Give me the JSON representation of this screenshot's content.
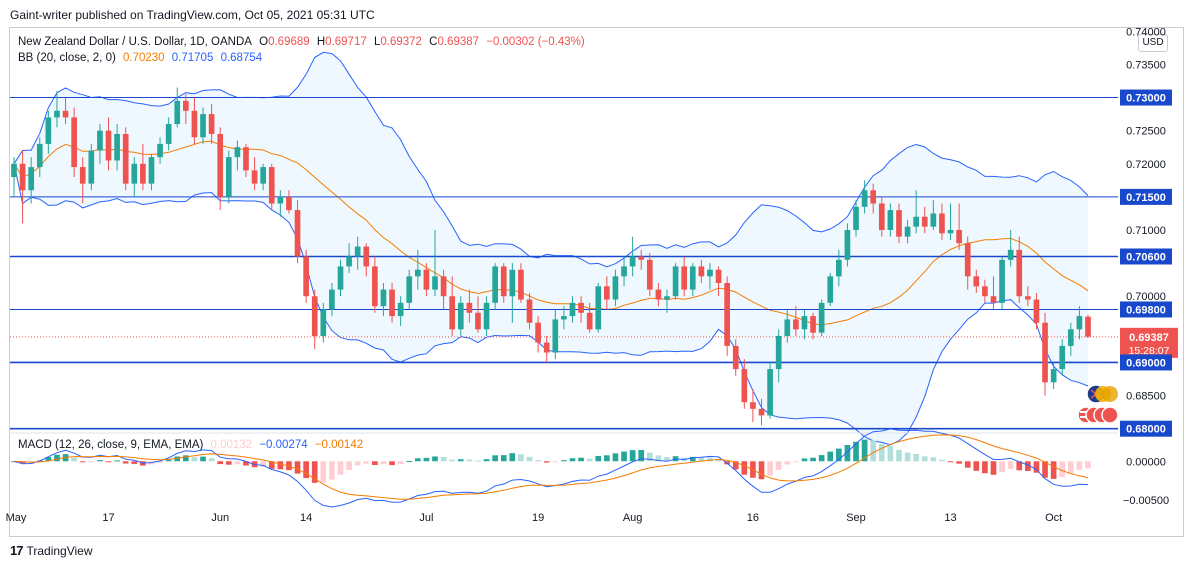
{
  "publisher_line": "Gaint-writer published on TradingView.com, Oct 05, 2021 05:31 UTC",
  "legend": {
    "symbol": "New Zealand Dollar / U.S. Dollar, 1D, OANDA",
    "open_label": "O",
    "open": "0.69689",
    "high_label": "H",
    "high": "0.69717",
    "low_label": "L",
    "low": "0.69372",
    "close_label": "C",
    "close": "0.69387",
    "change": "−0.00302 (−0.43%)",
    "bb_label": "BB (20, close, 2, 0)",
    "bb_mid": "0.70230",
    "bb_upper": "0.71705",
    "bb_lower": "0.68754",
    "macd_label": "MACD (12, 26, close, 9, EMA, EMA)",
    "macd_hist": "0.00132",
    "macd_line": "−0.00274",
    "macd_signal": "−0.00142"
  },
  "currency_button": "USD",
  "brand": "TradingView",
  "colors": {
    "up": "#26a69a",
    "down": "#ef5350",
    "bb_mid": "#f57c00",
    "bb_band": "#2962ff",
    "level_line": "#1848cc",
    "macd": "#2962ff",
    "signal": "#f57c00"
  },
  "chart_data": {
    "type": "candlestick",
    "symbol": "NZDUSD",
    "timeframe": "1D",
    "ylim": [
      0.6795,
      0.7405
    ],
    "price_ticks": [
      "0.74000",
      "0.73500",
      "0.73000",
      "0.72500",
      "0.72000",
      "0.71500",
      "0.71000",
      "0.70600",
      "0.70000",
      "0.69800",
      "0.69387",
      "0.69000",
      "0.68500",
      "0.68000"
    ],
    "current_price": "0.69387",
    "countdown": "15:28:07",
    "horizontal_levels": [
      {
        "value": 0.73,
        "label": "0.73000"
      },
      {
        "value": 0.715,
        "label": "0.71500"
      },
      {
        "value": 0.706,
        "label": "0.70600"
      },
      {
        "value": 0.698,
        "label": "0.69800"
      },
      {
        "value": 0.69,
        "label": "0.69000"
      },
      {
        "value": 0.68,
        "label": "0.68000"
      }
    ],
    "x_labels": [
      "May",
      "17",
      "Jun",
      "14",
      "Jul",
      "19",
      "Aug",
      "16",
      "Sep",
      "13",
      "Oct"
    ],
    "macd_ylim": [
      -0.006,
      0.0035
    ],
    "macd_ticks": [
      "0.00000",
      "−0.00500"
    ],
    "candles": [
      {
        "o": 0.718,
        "h": 0.721,
        "l": 0.715,
        "c": 0.72
      },
      {
        "o": 0.72,
        "h": 0.722,
        "l": 0.711,
        "c": 0.716
      },
      {
        "o": 0.716,
        "h": 0.721,
        "l": 0.714,
        "c": 0.7195
      },
      {
        "o": 0.7195,
        "h": 0.724,
        "l": 0.718,
        "c": 0.723
      },
      {
        "o": 0.723,
        "h": 0.728,
        "l": 0.7215,
        "c": 0.727
      },
      {
        "o": 0.727,
        "h": 0.731,
        "l": 0.7255,
        "c": 0.728
      },
      {
        "o": 0.728,
        "h": 0.73,
        "l": 0.726,
        "c": 0.727
      },
      {
        "o": 0.727,
        "h": 0.7285,
        "l": 0.718,
        "c": 0.7195
      },
      {
        "o": 0.7195,
        "h": 0.721,
        "l": 0.714,
        "c": 0.717
      },
      {
        "o": 0.717,
        "h": 0.723,
        "l": 0.716,
        "c": 0.722
      },
      {
        "o": 0.722,
        "h": 0.726,
        "l": 0.72,
        "c": 0.725
      },
      {
        "o": 0.725,
        "h": 0.727,
        "l": 0.719,
        "c": 0.7205
      },
      {
        "o": 0.7205,
        "h": 0.726,
        "l": 0.719,
        "c": 0.7245
      },
      {
        "o": 0.7245,
        "h": 0.7255,
        "l": 0.716,
        "c": 0.717
      },
      {
        "o": 0.717,
        "h": 0.721,
        "l": 0.715,
        "c": 0.72
      },
      {
        "o": 0.72,
        "h": 0.723,
        "l": 0.716,
        "c": 0.717
      },
      {
        "o": 0.717,
        "h": 0.7215,
        "l": 0.716,
        "c": 0.721
      },
      {
        "o": 0.721,
        "h": 0.724,
        "l": 0.72,
        "c": 0.723
      },
      {
        "o": 0.723,
        "h": 0.727,
        "l": 0.722,
        "c": 0.726
      },
      {
        "o": 0.726,
        "h": 0.7315,
        "l": 0.7255,
        "c": 0.7295
      },
      {
        "o": 0.7295,
        "h": 0.7305,
        "l": 0.726,
        "c": 0.728
      },
      {
        "o": 0.728,
        "h": 0.73,
        "l": 0.723,
        "c": 0.724
      },
      {
        "o": 0.724,
        "h": 0.7285,
        "l": 0.723,
        "c": 0.7275
      },
      {
        "o": 0.7275,
        "h": 0.729,
        "l": 0.723,
        "c": 0.7245
      },
      {
        "o": 0.7245,
        "h": 0.7255,
        "l": 0.713,
        "c": 0.715
      },
      {
        "o": 0.715,
        "h": 0.722,
        "l": 0.714,
        "c": 0.721
      },
      {
        "o": 0.721,
        "h": 0.7235,
        "l": 0.719,
        "c": 0.7225
      },
      {
        "o": 0.7225,
        "h": 0.723,
        "l": 0.718,
        "c": 0.719
      },
      {
        "o": 0.719,
        "h": 0.721,
        "l": 0.716,
        "c": 0.717
      },
      {
        "o": 0.717,
        "h": 0.72,
        "l": 0.716,
        "c": 0.7195
      },
      {
        "o": 0.7195,
        "h": 0.72,
        "l": 0.713,
        "c": 0.714
      },
      {
        "o": 0.714,
        "h": 0.716,
        "l": 0.712,
        "c": 0.715
      },
      {
        "o": 0.715,
        "h": 0.716,
        "l": 0.7125,
        "c": 0.713
      },
      {
        "o": 0.713,
        "h": 0.7145,
        "l": 0.705,
        "c": 0.706
      },
      {
        "o": 0.706,
        "h": 0.707,
        "l": 0.699,
        "c": 0.7
      },
      {
        "o": 0.7,
        "h": 0.701,
        "l": 0.692,
        "c": 0.694
      },
      {
        "o": 0.694,
        "h": 0.699,
        "l": 0.693,
        "c": 0.698
      },
      {
        "o": 0.698,
        "h": 0.702,
        "l": 0.697,
        "c": 0.701
      },
      {
        "o": 0.701,
        "h": 0.7055,
        "l": 0.7,
        "c": 0.7045
      },
      {
        "o": 0.7045,
        "h": 0.708,
        "l": 0.7035,
        "c": 0.706
      },
      {
        "o": 0.706,
        "h": 0.709,
        "l": 0.704,
        "c": 0.7075
      },
      {
        "o": 0.7075,
        "h": 0.708,
        "l": 0.703,
        "c": 0.7045
      },
      {
        "o": 0.7045,
        "h": 0.706,
        "l": 0.6975,
        "c": 0.6985
      },
      {
        "o": 0.6985,
        "h": 0.702,
        "l": 0.697,
        "c": 0.701
      },
      {
        "o": 0.701,
        "h": 0.702,
        "l": 0.696,
        "c": 0.697
      },
      {
        "o": 0.697,
        "h": 0.7,
        "l": 0.6955,
        "c": 0.699
      },
      {
        "o": 0.699,
        "h": 0.704,
        "l": 0.698,
        "c": 0.703
      },
      {
        "o": 0.703,
        "h": 0.707,
        "l": 0.701,
        "c": 0.704
      },
      {
        "o": 0.704,
        "h": 0.705,
        "l": 0.7,
        "c": 0.701
      },
      {
        "o": 0.701,
        "h": 0.71,
        "l": 0.7,
        "c": 0.703
      },
      {
        "o": 0.703,
        "h": 0.704,
        "l": 0.698,
        "c": 0.7
      },
      {
        "o": 0.7,
        "h": 0.703,
        "l": 0.694,
        "c": 0.695
      },
      {
        "o": 0.695,
        "h": 0.7,
        "l": 0.694,
        "c": 0.699
      },
      {
        "o": 0.699,
        "h": 0.701,
        "l": 0.696,
        "c": 0.6975
      },
      {
        "o": 0.6975,
        "h": 0.7,
        "l": 0.6945,
        "c": 0.695
      },
      {
        "o": 0.695,
        "h": 0.7,
        "l": 0.694,
        "c": 0.699
      },
      {
        "o": 0.699,
        "h": 0.705,
        "l": 0.698,
        "c": 0.7045
      },
      {
        "o": 0.7045,
        "h": 0.705,
        "l": 0.699,
        "c": 0.7
      },
      {
        "o": 0.7,
        "h": 0.705,
        "l": 0.696,
        "c": 0.704
      },
      {
        "o": 0.704,
        "h": 0.705,
        "l": 0.699,
        "c": 0.6995
      },
      {
        "o": 0.6995,
        "h": 0.7005,
        "l": 0.695,
        "c": 0.696
      },
      {
        "o": 0.696,
        "h": 0.697,
        "l": 0.6915,
        "c": 0.693
      },
      {
        "o": 0.693,
        "h": 0.694,
        "l": 0.69,
        "c": 0.6915
      },
      {
        "o": 0.6915,
        "h": 0.698,
        "l": 0.6905,
        "c": 0.6965
      },
      {
        "o": 0.6965,
        "h": 0.6985,
        "l": 0.695,
        "c": 0.697
      },
      {
        "o": 0.697,
        "h": 0.7,
        "l": 0.696,
        "c": 0.699
      },
      {
        "o": 0.699,
        "h": 0.7,
        "l": 0.696,
        "c": 0.6975
      },
      {
        "o": 0.6975,
        "h": 0.699,
        "l": 0.6945,
        "c": 0.695
      },
      {
        "o": 0.695,
        "h": 0.702,
        "l": 0.6945,
        "c": 0.7015
      },
      {
        "o": 0.7015,
        "h": 0.703,
        "l": 0.698,
        "c": 0.6995
      },
      {
        "o": 0.6995,
        "h": 0.704,
        "l": 0.6985,
        "c": 0.703
      },
      {
        "o": 0.703,
        "h": 0.706,
        "l": 0.7015,
        "c": 0.7045
      },
      {
        "o": 0.7045,
        "h": 0.709,
        "l": 0.703,
        "c": 0.706
      },
      {
        "o": 0.706,
        "h": 0.707,
        "l": 0.704,
        "c": 0.7055
      },
      {
        "o": 0.7055,
        "h": 0.7065,
        "l": 0.7,
        "c": 0.701
      },
      {
        "o": 0.701,
        "h": 0.702,
        "l": 0.6985,
        "c": 0.6995
      },
      {
        "o": 0.6995,
        "h": 0.701,
        "l": 0.6975,
        "c": 0.7
      },
      {
        "o": 0.7,
        "h": 0.705,
        "l": 0.6995,
        "c": 0.7045
      },
      {
        "o": 0.7045,
        "h": 0.706,
        "l": 0.7,
        "c": 0.701
      },
      {
        "o": 0.701,
        "h": 0.705,
        "l": 0.7,
        "c": 0.7045
      },
      {
        "o": 0.7045,
        "h": 0.7055,
        "l": 0.702,
        "c": 0.703
      },
      {
        "o": 0.703,
        "h": 0.705,
        "l": 0.701,
        "c": 0.704
      },
      {
        "o": 0.704,
        "h": 0.7045,
        "l": 0.7,
        "c": 0.702
      },
      {
        "o": 0.702,
        "h": 0.703,
        "l": 0.691,
        "c": 0.6925
      },
      {
        "o": 0.6925,
        "h": 0.6935,
        "l": 0.688,
        "c": 0.689
      },
      {
        "o": 0.689,
        "h": 0.6905,
        "l": 0.683,
        "c": 0.684
      },
      {
        "o": 0.684,
        "h": 0.686,
        "l": 0.681,
        "c": 0.683
      },
      {
        "o": 0.683,
        "h": 0.6845,
        "l": 0.6805,
        "c": 0.682
      },
      {
        "o": 0.682,
        "h": 0.69,
        "l": 0.6815,
        "c": 0.689
      },
      {
        "o": 0.689,
        "h": 0.695,
        "l": 0.687,
        "c": 0.694
      },
      {
        "o": 0.694,
        "h": 0.698,
        "l": 0.693,
        "c": 0.6965
      },
      {
        "o": 0.6965,
        "h": 0.6985,
        "l": 0.694,
        "c": 0.695
      },
      {
        "o": 0.695,
        "h": 0.698,
        "l": 0.6935,
        "c": 0.697
      },
      {
        "o": 0.697,
        "h": 0.6975,
        "l": 0.6935,
        "c": 0.6945
      },
      {
        "o": 0.6945,
        "h": 0.6995,
        "l": 0.694,
        "c": 0.699
      },
      {
        "o": 0.699,
        "h": 0.7035,
        "l": 0.6985,
        "c": 0.703
      },
      {
        "o": 0.703,
        "h": 0.707,
        "l": 0.7015,
        "c": 0.7055
      },
      {
        "o": 0.7055,
        "h": 0.711,
        "l": 0.7045,
        "c": 0.71
      },
      {
        "o": 0.71,
        "h": 0.7145,
        "l": 0.709,
        "c": 0.7135
      },
      {
        "o": 0.7135,
        "h": 0.7175,
        "l": 0.7125,
        "c": 0.716
      },
      {
        "o": 0.716,
        "h": 0.717,
        "l": 0.7125,
        "c": 0.714
      },
      {
        "o": 0.714,
        "h": 0.715,
        "l": 0.709,
        "c": 0.71
      },
      {
        "o": 0.71,
        "h": 0.714,
        "l": 0.709,
        "c": 0.713
      },
      {
        "o": 0.713,
        "h": 0.714,
        "l": 0.708,
        "c": 0.709
      },
      {
        "o": 0.709,
        "h": 0.7115,
        "l": 0.708,
        "c": 0.7105
      },
      {
        "o": 0.7105,
        "h": 0.716,
        "l": 0.7095,
        "c": 0.712
      },
      {
        "o": 0.712,
        "h": 0.7135,
        "l": 0.7095,
        "c": 0.7105
      },
      {
        "o": 0.7105,
        "h": 0.7145,
        "l": 0.71,
        "c": 0.7125
      },
      {
        "o": 0.7125,
        "h": 0.714,
        "l": 0.7085,
        "c": 0.7095
      },
      {
        "o": 0.7095,
        "h": 0.714,
        "l": 0.7085,
        "c": 0.71
      },
      {
        "o": 0.71,
        "h": 0.714,
        "l": 0.707,
        "c": 0.708
      },
      {
        "o": 0.708,
        "h": 0.709,
        "l": 0.701,
        "c": 0.703
      },
      {
        "o": 0.703,
        "h": 0.704,
        "l": 0.7005,
        "c": 0.7015
      },
      {
        "o": 0.7015,
        "h": 0.7025,
        "l": 0.699,
        "c": 0.7
      },
      {
        "o": 0.7,
        "h": 0.703,
        "l": 0.698,
        "c": 0.699
      },
      {
        "o": 0.699,
        "h": 0.706,
        "l": 0.698,
        "c": 0.7055
      },
      {
        "o": 0.7055,
        "h": 0.71,
        "l": 0.7045,
        "c": 0.707
      },
      {
        "o": 0.707,
        "h": 0.709,
        "l": 0.699,
        "c": 0.7
      },
      {
        "o": 0.7,
        "h": 0.7015,
        "l": 0.6985,
        "c": 0.6995
      },
      {
        "o": 0.6995,
        "h": 0.7005,
        "l": 0.695,
        "c": 0.696
      },
      {
        "o": 0.696,
        "h": 0.6975,
        "l": 0.685,
        "c": 0.687
      },
      {
        "o": 0.687,
        "h": 0.69,
        "l": 0.686,
        "c": 0.689
      },
      {
        "o": 0.689,
        "h": 0.6935,
        "l": 0.688,
        "c": 0.6925
      },
      {
        "o": 0.6925,
        "h": 0.696,
        "l": 0.691,
        "c": 0.695
      },
      {
        "o": 0.695,
        "h": 0.6985,
        "l": 0.6935,
        "c": 0.697
      },
      {
        "o": 0.6969,
        "h": 0.6972,
        "l": 0.6937,
        "c": 0.6939
      }
    ]
  }
}
